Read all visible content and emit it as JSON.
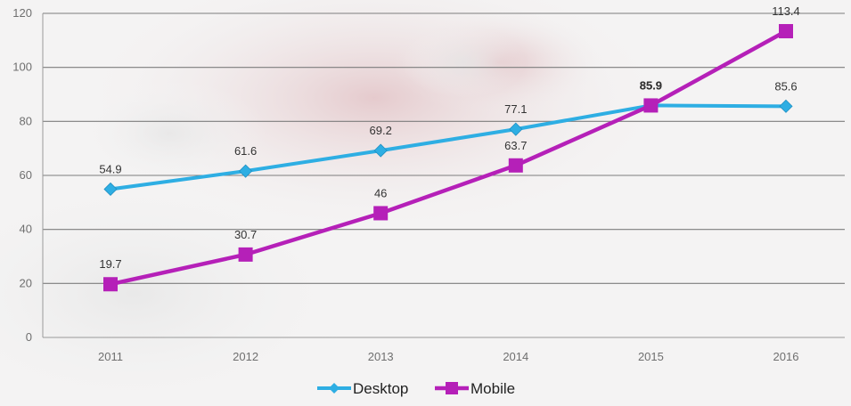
{
  "chart_data": {
    "type": "line",
    "categories": [
      "2011",
      "2012",
      "2013",
      "2014",
      "2015",
      "2016"
    ],
    "ylim": [
      0,
      120
    ],
    "yticks": [
      0,
      20,
      40,
      60,
      80,
      100,
      120
    ],
    "grid": true,
    "legend_position": "bottom-center",
    "series": [
      {
        "name": "Desktop",
        "values": [
          54.9,
          61.6,
          69.2,
          77.1,
          85.9,
          85.6
        ],
        "labels": [
          "54.9",
          "61.6",
          "69.2",
          "77.1",
          "85.9",
          "85.6"
        ],
        "color": "#2eaee3",
        "marker": "diamond"
      },
      {
        "name": "Mobile",
        "values": [
          19.7,
          30.7,
          46,
          63.7,
          85.9,
          113.4
        ],
        "labels": [
          "19.7",
          "30.7",
          "46",
          "63.7",
          "85.9",
          "113.4"
        ],
        "color": "#b520b8",
        "marker": "square"
      }
    ]
  }
}
